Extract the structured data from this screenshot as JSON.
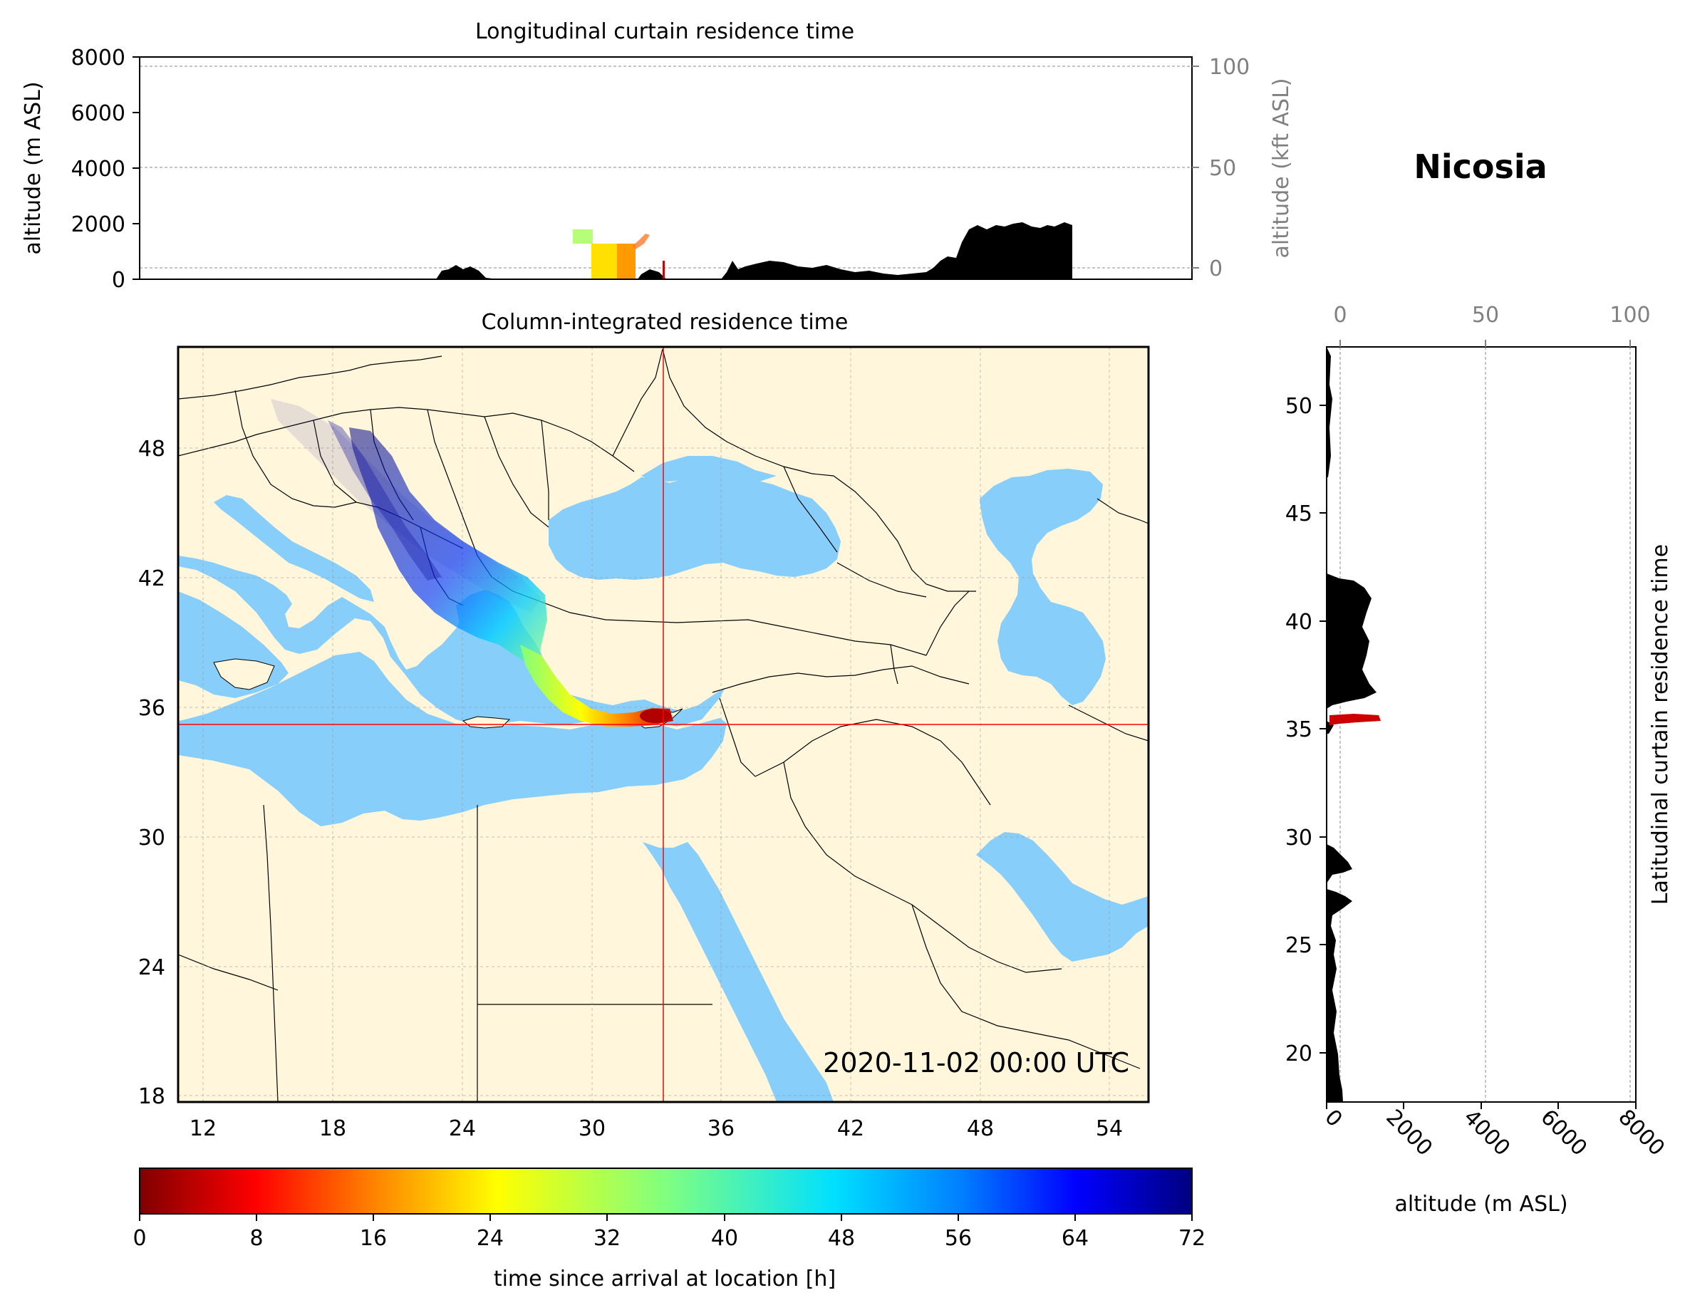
{
  "location": "Nicosia",
  "timestamp": "2020-11-02 00:00 UTC",
  "colors": {
    "sea": "#87cefa",
    "land": "#fff6dc",
    "terrain": "#000000",
    "crosshair": "#ff0000",
    "axis_gray": "#808080"
  },
  "top_panel": {
    "title": "Longitudinal curtain residence time",
    "ylabel_left": "altitude (m ASL)",
    "ylabel_right": "altitude (kft ASL)",
    "yticks_left": [
      "0",
      "2000",
      "4000",
      "6000",
      "8000"
    ],
    "yticks_right": [
      "0",
      "50",
      "100"
    ]
  },
  "map_panel": {
    "title": "Column-integrated residence time",
    "xticks": [
      "12",
      "18",
      "24",
      "30",
      "36",
      "42",
      "48",
      "54"
    ],
    "yticks": [
      "18",
      "24",
      "30",
      "36",
      "42",
      "48"
    ],
    "crosshair_lon": 33.4,
    "crosshair_lat": 35.2,
    "lon_range": [
      11,
      56
    ],
    "lat_range": [
      18,
      53
    ]
  },
  "right_panel": {
    "ylabel": "Latitudinal curtain residence time",
    "xlabel": "altitude (m ASL)",
    "xticks_bottom": [
      "0",
      "2000",
      "4000",
      "6000",
      "8000"
    ],
    "xticks_top": [
      "0",
      "50",
      "100"
    ],
    "yticks": [
      "20",
      "25",
      "30",
      "35",
      "40",
      "45",
      "50"
    ]
  },
  "colorbar": {
    "label": "time since arrival at location [h]",
    "ticks": [
      "0",
      "8",
      "16",
      "24",
      "32",
      "40",
      "48",
      "56",
      "64",
      "72"
    ],
    "range": [
      0,
      72
    ],
    "colormap": "jet_r"
  }
}
